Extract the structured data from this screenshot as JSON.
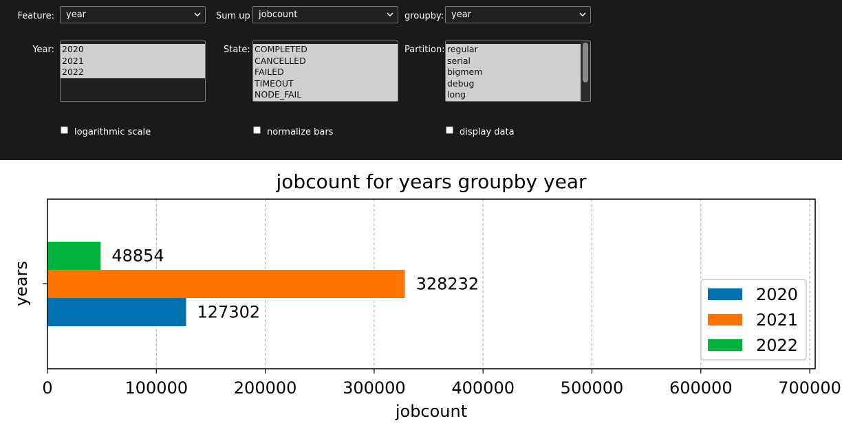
{
  "controls": {
    "feature": {
      "label": "Feature:",
      "value": "year"
    },
    "sum_up": {
      "label": "Sum up",
      "value": "jobcount"
    },
    "groupby": {
      "label": "groupby:",
      "value": "year"
    },
    "year": {
      "label": "Year:",
      "options": [
        "2020",
        "2021",
        "2022"
      ]
    },
    "state": {
      "label": "State:",
      "options": [
        "COMPLETED",
        "CANCELLED",
        "FAILED",
        "TIMEOUT",
        "NODE_FAIL"
      ]
    },
    "partition": {
      "label": "Partition:",
      "options": [
        "regular",
        "serial",
        "bigmem",
        "debug",
        "long"
      ]
    },
    "log_scale": {
      "label": "logarithmic scale",
      "checked": false
    },
    "normalize": {
      "label": "normalize bars",
      "checked": false
    },
    "display_data": {
      "label": "display data",
      "checked": false
    }
  },
  "chart_data": {
    "type": "bar",
    "orientation": "horizontal",
    "title": "jobcount for years groupby year",
    "xlabel": "jobcount",
    "ylabel": "years",
    "xlim": [
      0,
      705000
    ],
    "xticks": [
      0,
      100000,
      200000,
      300000,
      400000,
      500000,
      600000,
      700000
    ],
    "grid": "x-dashed",
    "legend_position": "right",
    "series": [
      {
        "name": "2020",
        "value": 127302,
        "color": "#0072b2"
      },
      {
        "name": "2021",
        "value": 328232,
        "color": "#ff7400"
      },
      {
        "name": "2022",
        "value": 48854,
        "color": "#00b33c"
      }
    ]
  }
}
